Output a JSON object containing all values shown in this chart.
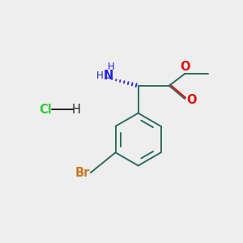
{
  "background_color": "#eeeeee",
  "bond_color": "#2d6b5e",
  "nitrogen_color": "#2222dd",
  "oxygen_color": "#dd1111",
  "bromine_color": "#cc7722",
  "chlorine_color": "#33cc33",
  "dark_color": "#222222",
  "figsize": [
    3.0,
    3.0
  ],
  "dpi": 100,
  "xlim": [
    0,
    10
  ],
  "ylim": [
    0,
    10
  ]
}
